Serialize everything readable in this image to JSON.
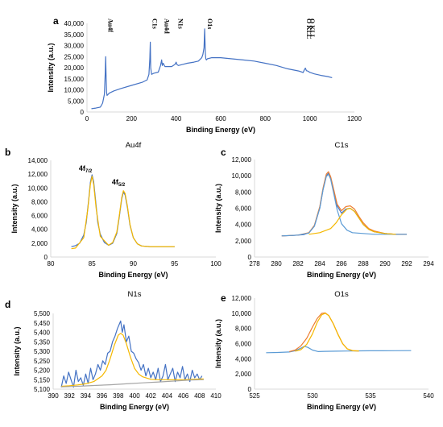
{
  "chart_data": [
    {
      "id": "a",
      "panel_label": "a",
      "type": "line",
      "title": "",
      "xlabel": "Binding Energy (eV)",
      "ylabel": "Intensity (a.u.)",
      "xlim": [
        0,
        1200
      ],
      "ylim": [
        0,
        40000
      ],
      "xticks": [
        0,
        200,
        400,
        600,
        800,
        1000,
        1200
      ],
      "yticks": [
        0,
        5000,
        10000,
        15000,
        20000,
        25000,
        30000,
        35000,
        40000
      ],
      "ytick_labels": [
        "0",
        "5,000",
        "10,000",
        "15,000",
        "20,000",
        "25,000",
        "30,000",
        "35,000",
        "40,000"
      ],
      "grid": false,
      "series": [
        {
          "color": "#4472c4",
          "x": [
            20,
            40,
            60,
            70,
            78,
            82,
            84,
            86,
            88,
            90,
            100,
            120,
            150,
            200,
            250,
            270,
            278,
            282,
            284,
            286,
            290,
            300,
            320,
            330,
            335,
            338,
            342,
            350,
            360,
            380,
            395,
            400,
            403,
            410,
            430,
            450,
            480,
            500,
            515,
            520,
            525,
            528,
            531,
            533,
            536,
            540,
            560,
            600,
            650,
            700,
            750,
            800,
            850,
            900,
            950,
            970,
            975,
            980,
            985,
            990,
            1000,
            1020,
            1050,
            1080,
            1100
          ],
          "y": [
            1500,
            1800,
            2200,
            4000,
            8000,
            18000,
            25000,
            15000,
            9000,
            7500,
            8500,
            9500,
            10500,
            12000,
            13500,
            14500,
            17000,
            24000,
            31500,
            20000,
            17000,
            17500,
            18000,
            21000,
            23500,
            21000,
            22000,
            20500,
            20500,
            20500,
            21500,
            22500,
            21500,
            21000,
            21500,
            22000,
            22500,
            23000,
            24500,
            26000,
            29000,
            37500,
            27000,
            24000,
            23500,
            24000,
            24500,
            24500,
            24000,
            23500,
            23000,
            22000,
            21000,
            19500,
            18500,
            17800,
            19000,
            19800,
            18600,
            18500,
            17900,
            17200,
            16500,
            16000,
            15500
          ]
        }
      ],
      "annotations": [
        {
          "text": "Au4f",
          "x": 85
        },
        {
          "text": "C1s",
          "x": 284
        },
        {
          "text": "Au4d",
          "x": 338
        },
        {
          "text": "N1s",
          "x": 400
        },
        {
          "text": "O1s",
          "x": 531
        },
        {
          "text": "O KLL",
          "x": 975
        },
        {
          "text": "O KLL",
          "x": 990
        }
      ]
    },
    {
      "id": "b",
      "panel_label": "b",
      "type": "line",
      "title": "Au4f",
      "xlabel": "Binding Energy (eV)",
      "ylabel": "Intensity (a.u.)",
      "xlim": [
        80,
        100
      ],
      "ylim": [
        0,
        14000
      ],
      "xticks": [
        80,
        85,
        90,
        95,
        100
      ],
      "yticks": [
        0,
        2000,
        4000,
        6000,
        8000,
        10000,
        12000,
        14000
      ],
      "ytick_labels": [
        "0",
        "2,000",
        "4,000",
        "6,000",
        "8,000",
        "10,000",
        "12,000",
        "14,000"
      ],
      "grid": false,
      "series": [
        {
          "color": "#4472c4",
          "x": [
            82.5,
            83,
            83.5,
            84,
            84.3,
            84.6,
            84.8,
            85,
            85.2,
            85.4,
            85.7,
            86,
            86.5,
            87,
            87.5,
            88,
            88.3,
            88.6,
            88.8,
            89,
            89.3,
            89.6,
            90,
            90.5,
            91,
            92,
            93,
            94,
            95
          ],
          "y": [
            1500,
            1650,
            2000,
            3200,
            5000,
            8300,
            10800,
            11900,
            10900,
            8500,
            5000,
            3300,
            2100,
            1700,
            2000,
            3400,
            5800,
            8400,
            9400,
            9000,
            7100,
            4600,
            2800,
            1900,
            1600,
            1500,
            1500,
            1500,
            1500
          ]
        },
        {
          "color": "#f5b800",
          "x": [
            82.5,
            83,
            84,
            84.5,
            84.8,
            85,
            85.2,
            85.5,
            86,
            87,
            87.5,
            88,
            88.3,
            88.6,
            88.8,
            89,
            89.3,
            89.6,
            90,
            90.5,
            91,
            92,
            93,
            94,
            95
          ],
          "y": [
            1200,
            1300,
            2800,
            7000,
            10500,
            11700,
            10500,
            7000,
            3000,
            1700,
            2100,
            3600,
            6000,
            8600,
            9600,
            9200,
            7300,
            4700,
            2800,
            1900,
            1600,
            1500,
            1500,
            1500,
            1500
          ]
        }
      ],
      "annotations": [
        {
          "main": "4f",
          "sub": "7/2",
          "x": 84.2,
          "y": 12500
        },
        {
          "main": "4f",
          "sub": "5/2",
          "x": 88.2,
          "y": 10500
        }
      ]
    },
    {
      "id": "c",
      "panel_label": "c",
      "type": "line",
      "title": "C1s",
      "xlabel": "Binding Energy (eV)",
      "ylabel": "Intensity (a.u.)",
      "xlim": [
        278,
        294
      ],
      "ylim": [
        0,
        12000
      ],
      "xticks": [
        278,
        280,
        282,
        284,
        286,
        288,
        290,
        292,
        294
      ],
      "yticks": [
        0,
        2000,
        4000,
        6000,
        8000,
        10000,
        12000
      ],
      "ytick_labels": [
        "0",
        "2,000",
        "4,000",
        "6,000",
        "8,000",
        "10,000",
        "12,000"
      ],
      "grid": false,
      "series": [
        {
          "color": "#4472c4",
          "x": [
            280.5,
            281.5,
            282.5,
            283,
            283.5,
            284,
            284.3,
            284.6,
            284.8,
            285,
            285.3,
            285.6,
            286,
            286.4,
            286.8,
            287.2,
            287.6,
            288,
            288.5,
            289,
            290,
            291,
            292
          ],
          "y": [
            2600,
            2650,
            2750,
            3000,
            3800,
            6000,
            8300,
            10000,
            10300,
            9700,
            8000,
            6300,
            5400,
            5900,
            6000,
            5600,
            4800,
            4000,
            3400,
            3100,
            2900,
            2800,
            2800
          ]
        },
        {
          "color": "#ed7d31",
          "x": [
            280.5,
            282,
            283,
            283.5,
            284,
            284.3,
            284.6,
            284.8,
            285,
            285.3,
            285.6,
            286,
            286.4,
            286.8,
            287.2,
            287.6,
            288,
            288.5,
            289,
            290,
            291,
            292
          ],
          "y": [
            2600,
            2700,
            3000,
            3900,
            6200,
            8500,
            10200,
            10500,
            9900,
            8200,
            6500,
            5700,
            6200,
            6300,
            5900,
            5000,
            4200,
            3500,
            3200,
            2900,
            2800,
            2800
          ]
        },
        {
          "color": "#5b9bd5",
          "x": [
            280.5,
            282,
            283,
            283.5,
            284,
            284.3,
            284.6,
            284.8,
            285,
            285.3,
            285.6,
            286,
            286.5,
            287,
            288,
            289,
            290,
            291,
            292
          ],
          "y": [
            2600,
            2700,
            2950,
            3800,
            6000,
            8300,
            9900,
            10200,
            9600,
            7700,
            5800,
            4100,
            3300,
            3000,
            2900,
            2800,
            2800,
            2800,
            2800
          ]
        },
        {
          "color": "#f5b800",
          "x": [
            283,
            284,
            285,
            285.5,
            286,
            286.5,
            286.8,
            287.2,
            287.6,
            288,
            288.5,
            289,
            290,
            291
          ],
          "y": [
            2800,
            3000,
            3500,
            4200,
            5200,
            5900,
            6000,
            5600,
            4800,
            4000,
            3400,
            3100,
            2900,
            2800
          ]
        }
      ]
    },
    {
      "id": "d",
      "panel_label": "d",
      "type": "line",
      "title": "N1s",
      "xlabel": "Binding Energy (eV)",
      "ylabel": "Intensity (a.u.)",
      "xlim": [
        390,
        410
      ],
      "ylim": [
        5100,
        5500
      ],
      "xticks": [
        390,
        392,
        394,
        396,
        398,
        400,
        402,
        404,
        406,
        408,
        410
      ],
      "yticks": [
        5100,
        5150,
        5200,
        5250,
        5300,
        5350,
        5400,
        5450,
        5500
      ],
      "ytick_labels": [
        "5,100",
        "5,150",
        "5,200",
        "5,250",
        "5,300",
        "5,350",
        "5,400",
        "5,450",
        "5,500"
      ],
      "grid": false,
      "series": [
        {
          "color": "#4472c4",
          "x": [
            391,
            391.3,
            391.6,
            391.9,
            392.2,
            392.5,
            392.8,
            393.1,
            393.4,
            393.7,
            394,
            394.3,
            394.6,
            394.9,
            395.2,
            395.5,
            395.8,
            396.1,
            396.4,
            396.7,
            397,
            397.3,
            397.6,
            397.9,
            398.1,
            398.3,
            398.5,
            398.7,
            399,
            399.3,
            399.6,
            399.9,
            400.2,
            400.5,
            400.8,
            401.1,
            401.4,
            401.7,
            402,
            402.3,
            402.6,
            402.9,
            403.2,
            403.5,
            403.8,
            404.1,
            404.4,
            404.7,
            405,
            405.3,
            405.6,
            405.9,
            406.2,
            406.5,
            406.8,
            407.1,
            407.4,
            407.7,
            408,
            408.3
          ],
          "y": [
            5110,
            5170,
            5130,
            5190,
            5150,
            5110,
            5200,
            5140,
            5160,
            5120,
            5180,
            5130,
            5210,
            5150,
            5180,
            5230,
            5200,
            5250,
            5230,
            5290,
            5300,
            5350,
            5380,
            5420,
            5440,
            5460,
            5400,
            5440,
            5350,
            5380,
            5300,
            5290,
            5260,
            5240,
            5200,
            5230,
            5170,
            5210,
            5160,
            5190,
            5150,
            5210,
            5140,
            5170,
            5230,
            5150,
            5180,
            5210,
            5140,
            5190,
            5160,
            5220,
            5150,
            5180,
            5140,
            5200,
            5160,
            5180,
            5150,
            5170
          ]
        },
        {
          "color": "#f5b800",
          "x": [
            391,
            392,
            393,
            394,
            395,
            396,
            396.5,
            397,
            397.5,
            398,
            398.3,
            398.6,
            399,
            399.5,
            400,
            400.5,
            401,
            402,
            403,
            404,
            405,
            406,
            407,
            408,
            408.5
          ],
          "y": [
            5115,
            5118,
            5122,
            5128,
            5140,
            5170,
            5200,
            5260,
            5330,
            5385,
            5395,
            5385,
            5340,
            5270,
            5210,
            5180,
            5165,
            5152,
            5150,
            5150,
            5150,
            5150,
            5152,
            5153,
            5154
          ]
        },
        {
          "color": "#a5a5a5",
          "x": [
            391,
            393,
            395,
            397,
            399,
            401,
            403,
            405,
            407,
            408.5
          ],
          "y": [
            5112,
            5115,
            5119,
            5123,
            5128,
            5133,
            5138,
            5143,
            5148,
            5150
          ]
        }
      ]
    },
    {
      "id": "e",
      "panel_label": "e",
      "type": "line",
      "title": "O1s",
      "xlabel": "Binding Energy (eV)",
      "ylabel": "Intensity (a.u.)",
      "xlim": [
        525,
        540
      ],
      "ylim": [
        0,
        12000
      ],
      "xticks": [
        525,
        530,
        535,
        540
      ],
      "yticks": [
        0,
        2000,
        4000,
        6000,
        8000,
        10000,
        12000
      ],
      "ytick_labels": [
        "0",
        "2,000",
        "4,000",
        "6,000",
        "8,000",
        "10,000",
        "12,000"
      ],
      "grid": false,
      "series": [
        {
          "color": "#5b9bd5",
          "x": [
            526,
            527,
            528,
            528.5,
            529,
            529.3,
            529.6,
            530,
            530.5,
            531,
            532,
            533,
            534,
            535,
            536,
            537,
            538.5
          ],
          "y": [
            4800,
            4830,
            4900,
            5050,
            5400,
            5650,
            5500,
            5150,
            4950,
            4980,
            5000,
            5020,
            5040,
            5050,
            5060,
            5070,
            5080
          ]
        },
        {
          "color": "#ed7d31",
          "x": [
            528,
            528.5,
            529,
            529.5,
            530,
            530.4,
            530.8,
            531.1,
            531.4,
            531.8,
            532.2,
            532.6,
            533,
            533.5,
            534
          ],
          "y": [
            4950,
            5150,
            5700,
            6700,
            8200,
            9300,
            10000,
            10050,
            9700,
            8600,
            7200,
            6000,
            5300,
            5050,
            5030
          ]
        },
        {
          "color": "#f5b800",
          "x": [
            528.5,
            529,
            529.5,
            530,
            530.4,
            530.8,
            531.1,
            531.4,
            531.8,
            532.2,
            532.6,
            533,
            533.5,
            534
          ],
          "y": [
            5000,
            5200,
            5900,
            7300,
            8800,
            9800,
            10000,
            9700,
            8600,
            7200,
            6000,
            5300,
            5050,
            5030
          ]
        }
      ]
    }
  ]
}
